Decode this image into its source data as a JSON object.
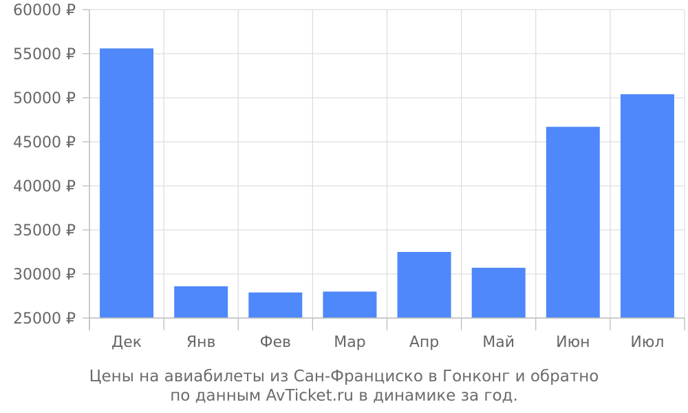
{
  "chart_data": {
    "type": "bar",
    "categories": [
      "Дек",
      "Янв",
      "Фев",
      "Мар",
      "Апр",
      "Май",
      "Июн",
      "Июл"
    ],
    "values": [
      55600,
      28600,
      27900,
      28000,
      32500,
      30700,
      46700,
      50400
    ],
    "ylim": [
      25000,
      60000
    ],
    "yticks": [
      25000,
      30000,
      35000,
      40000,
      45000,
      50000,
      55000,
      60000
    ],
    "currency_symbol": "₽",
    "bar_color": "#4e88fa",
    "grid": true,
    "caption_line1": "Цены на авиабилеты из Сан-Франциско в Гонконг и обратно",
    "caption_line2": "по данным AvTicket.ru в динамике за год."
  }
}
